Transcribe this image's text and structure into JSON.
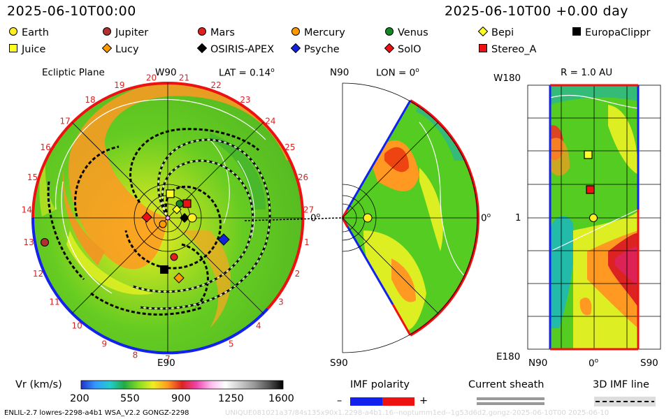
{
  "header": {
    "date_left": "2025-06-10T00:00",
    "date_right": "2025-06-10T00 +0.00 day"
  },
  "legend": [
    {
      "name": "Earth",
      "shape": "circle",
      "color": "#ffee22"
    },
    {
      "name": "Jupiter",
      "shape": "circle",
      "color": "#b03030"
    },
    {
      "name": "Mars",
      "shape": "circle",
      "color": "#e02020"
    },
    {
      "name": "Mercury",
      "shape": "circle",
      "color": "#ff9900"
    },
    {
      "name": "Venus",
      "shape": "circle",
      "color": "#118822"
    },
    {
      "name": "Bepi",
      "shape": "diamond",
      "color": "#ffff22"
    },
    {
      "name": "EuropaClippr",
      "shape": "square",
      "color": "#000000"
    },
    {
      "name": "Juice",
      "shape": "square",
      "color": "#ffff22"
    },
    {
      "name": "Lucy",
      "shape": "diamond",
      "color": "#ff9900"
    },
    {
      "name": "OSIRIS-APEX",
      "shape": "diamond",
      "color": "#000000"
    },
    {
      "name": "Psyche",
      "shape": "diamond",
      "color": "#1122dd"
    },
    {
      "name": "SolO",
      "shape": "diamond",
      "color": "#ee1111"
    },
    {
      "name": "Stereo_A",
      "shape": "square",
      "color": "#ee1111"
    }
  ],
  "ecliptic": {
    "title": "Ecliptic Plane",
    "top_label": "W90",
    "bottom_label": "E90",
    "lat_label": "LAT = 0.14",
    "angle_label": "0",
    "sector_numbers": [
      "7",
      "8",
      "9",
      "10",
      "11",
      "12",
      "13",
      "14",
      "15",
      "16",
      "17",
      "18",
      "19",
      "20",
      "21",
      "22",
      "23",
      "24",
      "25",
      "26",
      "27",
      "1",
      "2",
      "3",
      "4",
      "5"
    ]
  },
  "meridional": {
    "top_label": "N90",
    "bottom_label": "S90",
    "lon_label": "LON = 0",
    "angle_label": "0"
  },
  "radial": {
    "title": "R = 1.0 AU",
    "top_left_label": "W180",
    "bottom_left_label": "E180",
    "mid_left_label": "1",
    "bottom_labels": [
      "N90",
      "0",
      "S90"
    ]
  },
  "colorbar": {
    "label": "Vr (km/s)",
    "ticks": [
      "200",
      "550",
      "900",
      "1250",
      "1600"
    ],
    "stops": [
      "#2233cc",
      "#3399ff",
      "#22cccc",
      "#22aa44",
      "#88dd22",
      "#eeee22",
      "#ff9922",
      "#dd2222",
      "#ee44aa",
      "#ffbbee",
      "#ffffff",
      "#cccccc",
      "#999999",
      "#555555",
      "#000000"
    ]
  },
  "imf_polarity": {
    "label": "IMF polarity",
    "minus": "–",
    "plus": "+",
    "colors": [
      "#1122ee",
      "#ee1111"
    ]
  },
  "current_sheath": {
    "label": "Current sheath"
  },
  "imf_line": {
    "label": "3D IMF line"
  },
  "footer": {
    "left": "ENLIL-2.7 lowres-2298-a4b1 WSA_V2.2 GONGZ-2298",
    "right": "UNIQUE081021a37/84s135x90x1.2298-a4b1.16--noptumm1ed--1g53d6d2.gongz-2025-06-10T00 2025-06-10"
  }
}
